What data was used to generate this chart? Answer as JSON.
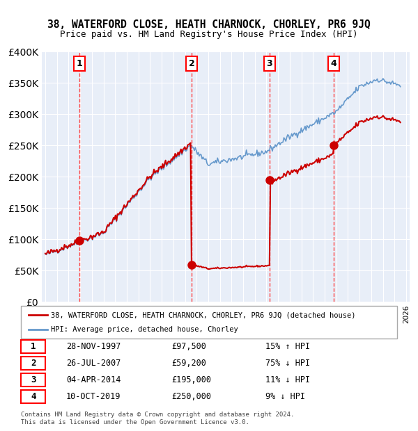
{
  "title": "38, WATERFORD CLOSE, HEATH CHARNOCK, CHORLEY, PR6 9JQ",
  "subtitle": "Price paid vs. HM Land Registry's House Price Index (HPI)",
  "legend_line1": "38, WATERFORD CLOSE, HEATH CHARNOCK, CHORLEY, PR6 9JQ (detached house)",
  "legend_line2": "HPI: Average price, detached house, Chorley",
  "footer": "Contains HM Land Registry data © Crown copyright and database right 2024.\nThis data is licensed under the Open Government Licence v3.0.",
  "sale_dates": [
    1997.91,
    2007.56,
    2014.26,
    2019.78
  ],
  "sale_prices": [
    97500,
    59200,
    195000,
    250000
  ],
  "sale_labels": [
    "1",
    "2",
    "3",
    "4"
  ],
  "table_entries": [
    {
      "num": "1",
      "date": "28-NOV-1997",
      "price": "£97,500",
      "hpi": "15% ↑ HPI"
    },
    {
      "num": "2",
      "date": "26-JUL-2007",
      "price": "£59,200",
      "hpi": "75% ↓ HPI"
    },
    {
      "num": "3",
      "date": "04-APR-2014",
      "price": "£195,000",
      "hpi": "11% ↓ HPI"
    },
    {
      "num": "4",
      "date": "10-OCT-2019",
      "price": "£250,000",
      "hpi": "9% ↓ HPI"
    }
  ],
  "hpi_color": "#6699cc",
  "sale_line_color": "#cc0000",
  "sale_dot_color": "#cc0000",
  "vline_color": "#ff4444",
  "background_plot": "#e8eef8",
  "grid_color": "#ffffff",
  "ylim": [
    0,
    400000
  ],
  "yticks": [
    0,
    50000,
    100000,
    150000,
    200000,
    250000,
    300000,
    350000,
    400000
  ],
  "year_start": 1995,
  "year_end": 2026
}
